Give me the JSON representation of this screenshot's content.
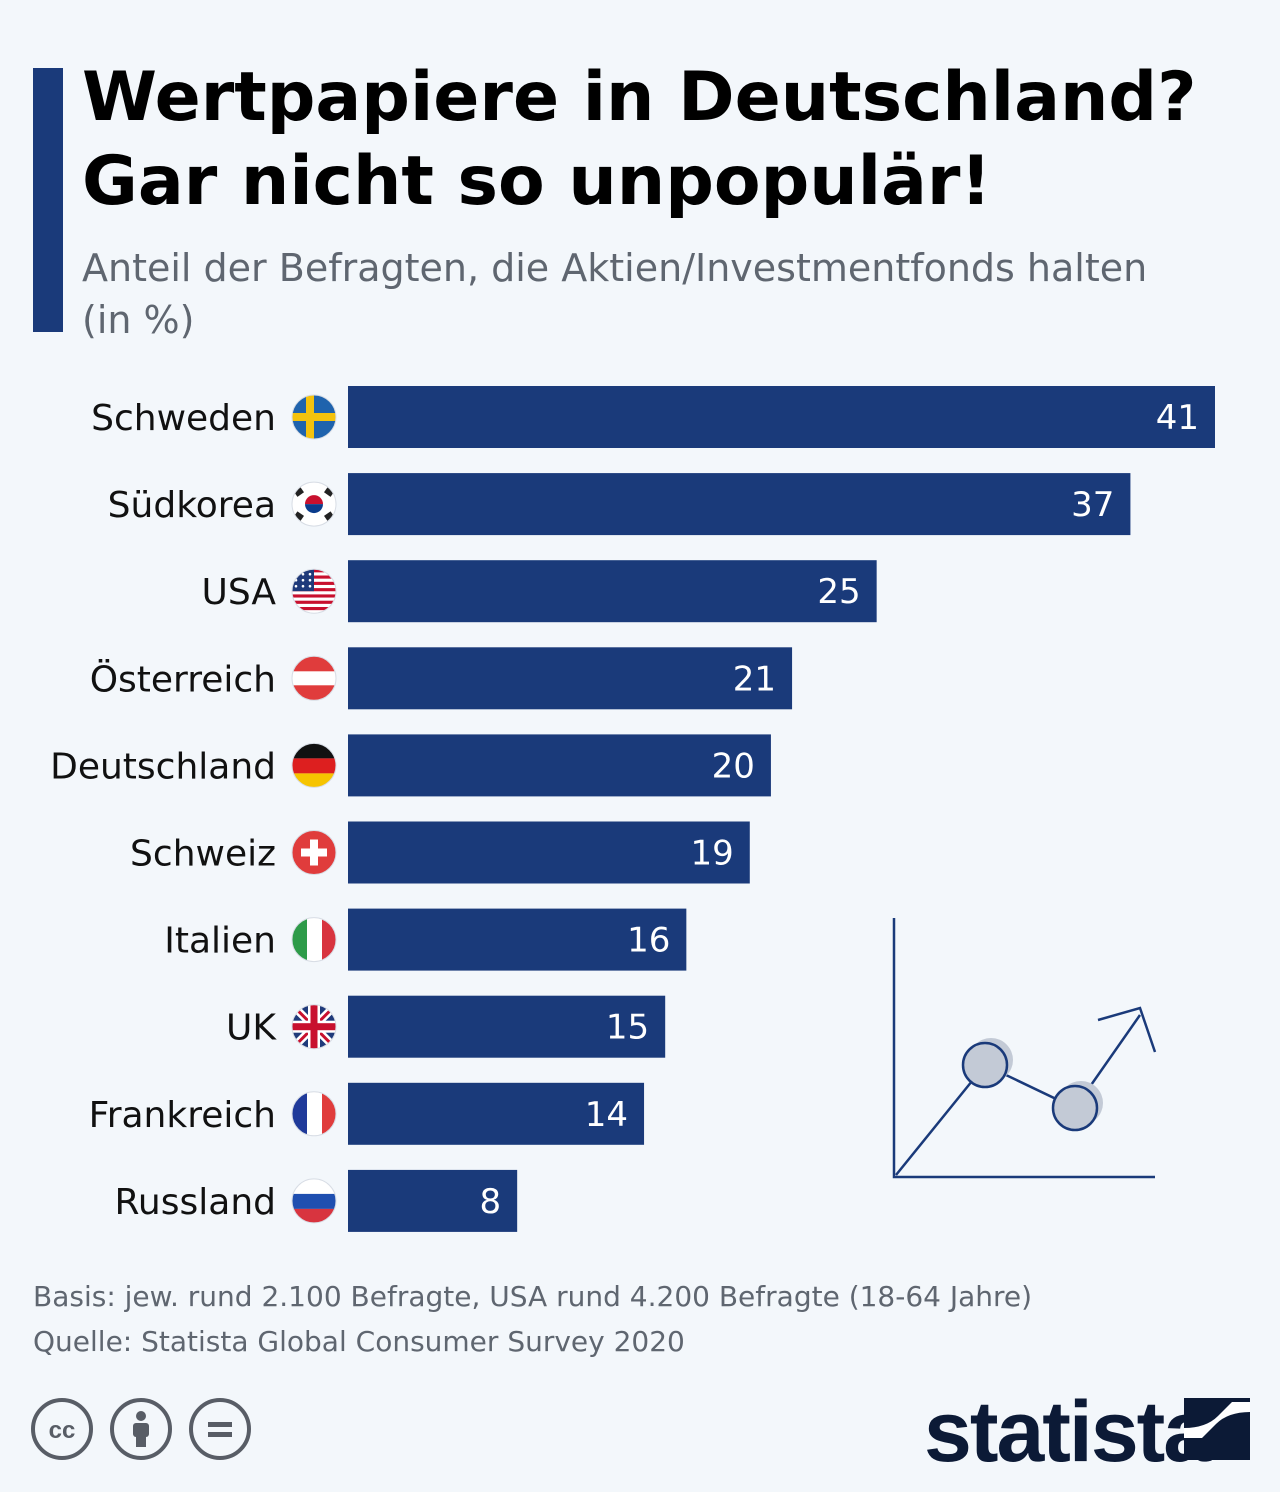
{
  "header": {
    "title_line1": "Wertpapiere in Deutschland?",
    "title_line2": "Gar nicht so unpopulär!",
    "subtitle_line1": "Anteil der Befragten, die Aktien/Investmentfonds halten",
    "subtitle_line2": "(in %)"
  },
  "chart_data": {
    "type": "bar",
    "orientation": "horizontal",
    "categories": [
      "Schweden",
      "Südkorea",
      "USA",
      "Österreich",
      "Deutschland",
      "Schweiz",
      "Italien",
      "UK",
      "Frankreich",
      "Russland"
    ],
    "values": [
      41,
      37,
      25,
      21,
      20,
      19,
      16,
      15,
      14,
      8
    ],
    "value_labels": [
      "41",
      "37",
      "25",
      "21",
      "20",
      "19",
      "16",
      "15",
      "14",
      "8"
    ],
    "flags": [
      "sweden-flag-icon",
      "south-korea-flag-icon",
      "usa-flag-icon",
      "austria-flag-icon",
      "germany-flag-icon",
      "switzerland-flag-icon",
      "italy-flag-icon",
      "uk-flag-icon",
      "france-flag-icon",
      "russia-flag-icon"
    ],
    "xlim": [
      0,
      41
    ],
    "grid": false,
    "bar_color": "#1a3a7a"
  },
  "footer": {
    "basis": "Basis: jew. rund 2.100 Befragte, USA rund 4.200 Befragte (18-64 Jahre)",
    "source": "Quelle: Statista Global Consumer Survey 2020"
  },
  "brand": {
    "name": "statista"
  },
  "license_icons": [
    "cc-icon",
    "attribution-icon",
    "no-derivatives-icon"
  ]
}
